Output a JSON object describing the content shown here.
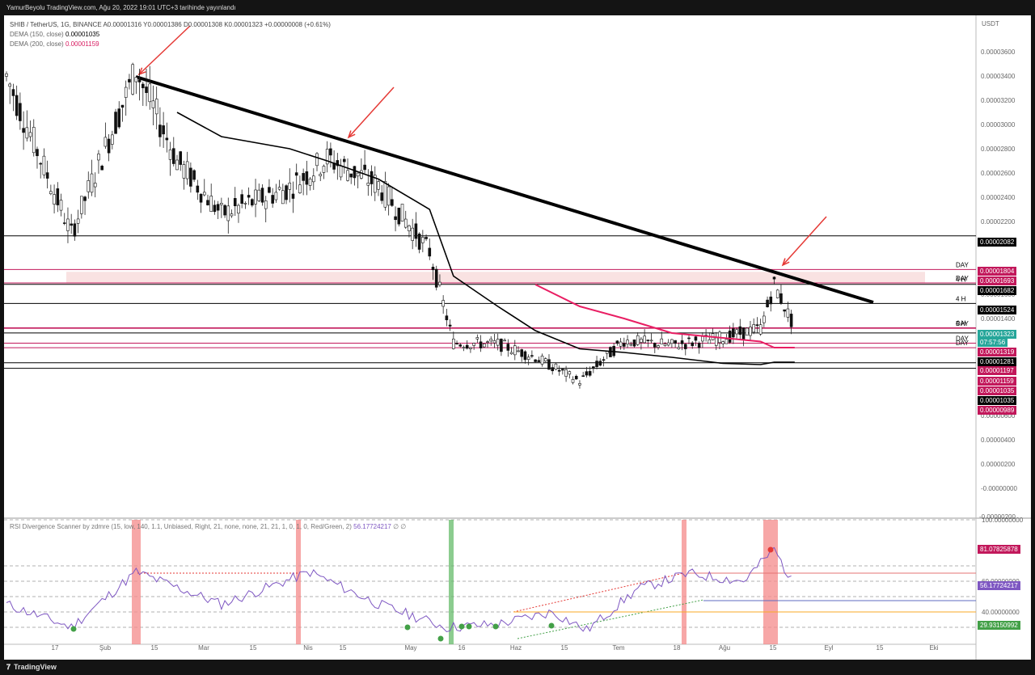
{
  "header": {
    "publish_text": "YamurBeyolu TradingView.com, Ağu 20, 2022 19:01 UTC+3 tarihinde yayınlandı"
  },
  "legend": {
    "symbol": "SHIB / TetherUS, 1G, BINANCE",
    "ohlc": "A0.00001316  Y0.00001386  D0.00001308  K0.00001323  +0.00000008 (+0.61%)",
    "dema150_label": "DEMA (150, close)",
    "dema150_value": "0.00001035",
    "dema200_label": "DEMA (200, close)",
    "dema200_value": "0.00001159"
  },
  "rsi_legend": {
    "label": "RSI Divergence Scanner by zdmre (15, low, 140, 1.1, Unbiased, Right, 21, none, none, 21, 21, 1, 0, 1, 0, Red/Green, 2)",
    "value": "56.17724217",
    "suffix": "∅  ∅"
  },
  "footer": {
    "brand": "TradingView"
  },
  "axis": {
    "currency": "USDT",
    "price_ticks": [
      "0.00003600",
      "0.00003400",
      "0.00003200",
      "0.00003000",
      "0.00002800",
      "0.00002600",
      "0.00002400",
      "0.00002200",
      "0.00001600",
      "0.00001400",
      "0.00000800",
      "0.00000600",
      "0.00000400",
      "0.00000200",
      "-0.00000000",
      "-0.00000200"
    ],
    "rsi_ticks": [
      "100.00000000",
      "60.00000000",
      "40.00000000"
    ],
    "time_ticks": [
      "17",
      "Şub",
      "15",
      "Mar",
      "15",
      "Nis",
      "15",
      "May",
      "16",
      "Haz",
      "15",
      "Tem",
      "18",
      "Ağu",
      "15",
      "Eyl",
      "15",
      "Eki"
    ]
  },
  "colors": {
    "up": "#26a69a",
    "down": "#000000",
    "dema150": "#000000",
    "dema200": "#e91e63",
    "level_pink": "#c2185b",
    "rsi_line": "#7e57c2",
    "highlight_red": "#f48a8a",
    "highlight_green": "#66bb6a",
    "arrow": "#e53935"
  },
  "chart_data": [
    {
      "type": "line",
      "title": "SHIB / TetherUS, 1G, BINANCE",
      "xlabel": "",
      "ylabel": "USDT",
      "ylim": [
        -2e-06,
        3.75e-05
      ],
      "series": [
        {
          "name": "SHIB / TetherUS",
          "x": [
            "2022-01-01",
            "2022-01-20",
            "2022-02-08",
            "2022-02-20",
            "2022-03-05",
            "2022-03-25",
            "2022-04-05",
            "2022-04-20",
            "2022-05-05",
            "2022-05-12",
            "2022-05-25",
            "2022-06-05",
            "2022-06-18",
            "2022-07-01",
            "2022-07-15",
            "2022-07-30",
            "2022-08-10",
            "2022-08-14",
            "2022-08-20"
          ],
          "values": [
            3.4e-05,
            2.1e-05,
            3.45e-05,
            2.7e-05,
            2.26e-05,
            2.48e-05,
            2.72e-05,
            2.5e-05,
            1.95e-05,
            1.2e-05,
            1.19e-05,
            1.08e-05,
            8.8e-06,
            1.22e-05,
            1.18e-05,
            1.24e-05,
            1.32e-05,
            1.68e-05,
            1.32e-05
          ]
        },
        {
          "name": "DEMA (150, close)",
          "values": [
            null,
            null,
            null,
            3.1e-05,
            2.9e-05,
            2.8e-05,
            2.7e-05,
            2.55e-05,
            2.3e-05,
            1.75e-05,
            1.5e-05,
            1.3e-05,
            1.15e-05,
            1.12e-05,
            1.08e-05,
            1.03e-05,
            1.02e-05,
            1.04e-05,
            1.04e-05
          ]
        },
        {
          "name": "DEMA (200, close)",
          "values": [
            null,
            null,
            null,
            null,
            null,
            null,
            null,
            null,
            null,
            null,
            null,
            1.68e-05,
            1.5e-05,
            1.4e-05,
            1.28e-05,
            1.24e-05,
            1.21e-05,
            1.16e-05,
            1.16e-05
          ]
        }
      ],
      "levels": [
        {
          "price": "0.00002082",
          "tf": ""
        },
        {
          "price": "0.00001804",
          "tf": "DAY"
        },
        {
          "price": "0.00001693",
          "tf": "DAY"
        },
        {
          "price": "0.00001682",
          "tf": "4 H"
        },
        {
          "price": "0.00001524",
          "tf": "4 H"
        },
        {
          "price": "0.00001323",
          "tf": "4 H"
        },
        {
          "price": "0.00001319",
          "tf": "DAY"
        },
        {
          "price": "0.00001281",
          "tf": ""
        },
        {
          "price": "0.00001197",
          "tf": "DAY"
        },
        {
          "price": "0.00001159",
          "tf": "DAY"
        },
        {
          "price": "0.00001035",
          "tf": ""
        },
        {
          "price": "0.00000989",
          "tf": ""
        }
      ],
      "price_tags": [
        {
          "text": "0.00002082",
          "style": "black"
        },
        {
          "text": "0.00001804",
          "style": "pink"
        },
        {
          "text": "0.00001693",
          "style": "pink"
        },
        {
          "text": "0.00001682",
          "style": "black"
        },
        {
          "text": "0.00001524",
          "style": "black"
        },
        {
          "text": "0.00001323",
          "style": "teal"
        },
        {
          "text": "07:57:56",
          "style": "teal"
        },
        {
          "text": "0.00001319",
          "style": "pink"
        },
        {
          "text": "0.00001281",
          "style": "black"
        },
        {
          "text": "0.00001197",
          "style": "pink"
        },
        {
          "text": "0.00001159",
          "style": "pink"
        },
        {
          "text": "0.00001035",
          "style": "pink"
        },
        {
          "text": "0.00001035",
          "style": "black"
        },
        {
          "text": "0.00000989",
          "style": "pink"
        }
      ],
      "grid": false,
      "legend": "top-left"
    },
    {
      "type": "line",
      "title": "RSI Divergence Scanner by zdmre",
      "ylim": [
        20,
        100
      ],
      "series": [
        {
          "name": "RSI",
          "x": [
            "2022-01-01",
            "2022-01-20",
            "2022-02-08",
            "2022-03-05",
            "2022-03-31",
            "2022-04-20",
            "2022-05-10",
            "2022-05-25",
            "2022-06-10",
            "2022-06-20",
            "2022-07-05",
            "2022-07-20",
            "2022-08-05",
            "2022-08-14",
            "2022-08-20"
          ],
          "values": [
            45,
            30,
            66,
            45,
            66,
            45,
            30,
            32,
            40,
            28,
            55,
            65,
            60,
            81,
            56
          ]
        }
      ],
      "value_tags": [
        "81.07825878",
        "56.17724217",
        "29.93150992"
      ]
    }
  ]
}
